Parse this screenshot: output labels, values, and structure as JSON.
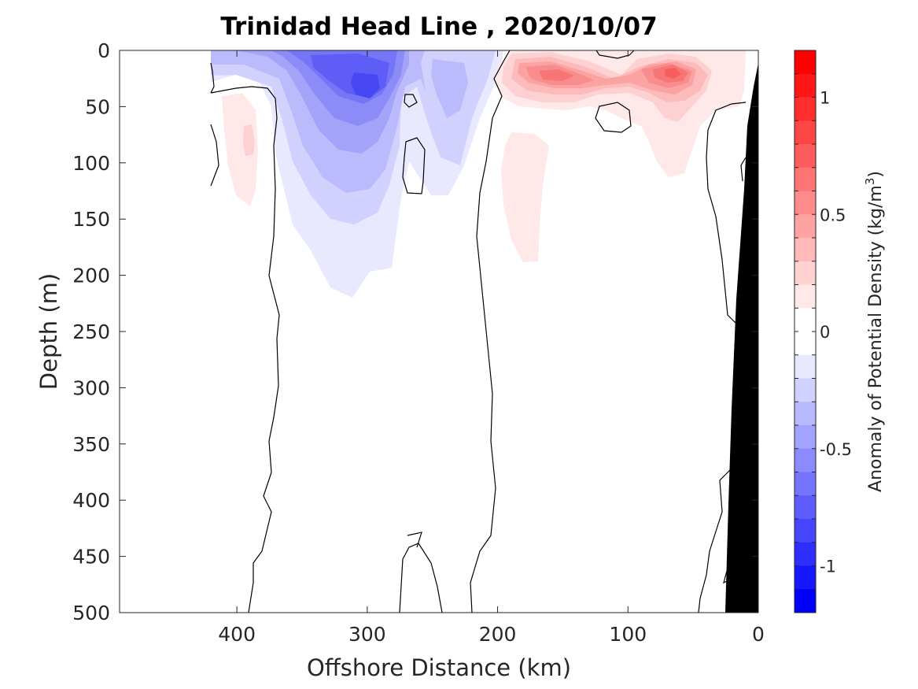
{
  "chart_data": {
    "type": "contour",
    "title": "Trinidad Head Line , 2020/10/07",
    "xlabel": "Offshore Distance (km)",
    "ylabel": "Depth (m)",
    "xlim": [
      490,
      0
    ],
    "ylim": [
      0,
      500
    ],
    "x_ticks": [
      400,
      300,
      200,
      100,
      0
    ],
    "y_ticks": [
      0,
      50,
      100,
      150,
      200,
      250,
      300,
      350,
      400,
      450,
      500
    ],
    "y_reversed": true,
    "x_reversed": true,
    "colorbar": {
      "label_pre": "Anomaly of Potential Density (kg/m",
      "label_sup": "3",
      "label_post": ")",
      "range": [
        -1.2,
        1.2
      ],
      "ticks": [
        1,
        0.5,
        0,
        -0.5,
        -1
      ],
      "tick_labels": [
        "1",
        "0.5",
        "0",
        "-0.5",
        "-1"
      ],
      "levels": 24,
      "step": 0.1,
      "colormap": "blue-white-red",
      "min_color": "#0000ff",
      "max_color": "#ff0000"
    },
    "features": [
      {
        "name": "negative-anomaly-core",
        "x_km": 300,
        "depth_m": 35,
        "value": -0.75
      },
      {
        "name": "positive-anomaly-west",
        "x_km": 150,
        "depth_m": 25,
        "value": 0.45
      },
      {
        "name": "positive-anomaly-east",
        "x_km": 65,
        "depth_m": 22,
        "value": 0.5
      },
      {
        "name": "positive-anomaly-deep-west",
        "x_km": 390,
        "depth_m": 85,
        "value": 0.2
      },
      {
        "name": "negative-anomaly-mid",
        "x_km": 240,
        "depth_m": 40,
        "value": -0.3
      }
    ],
    "topography_color": "#000000"
  }
}
